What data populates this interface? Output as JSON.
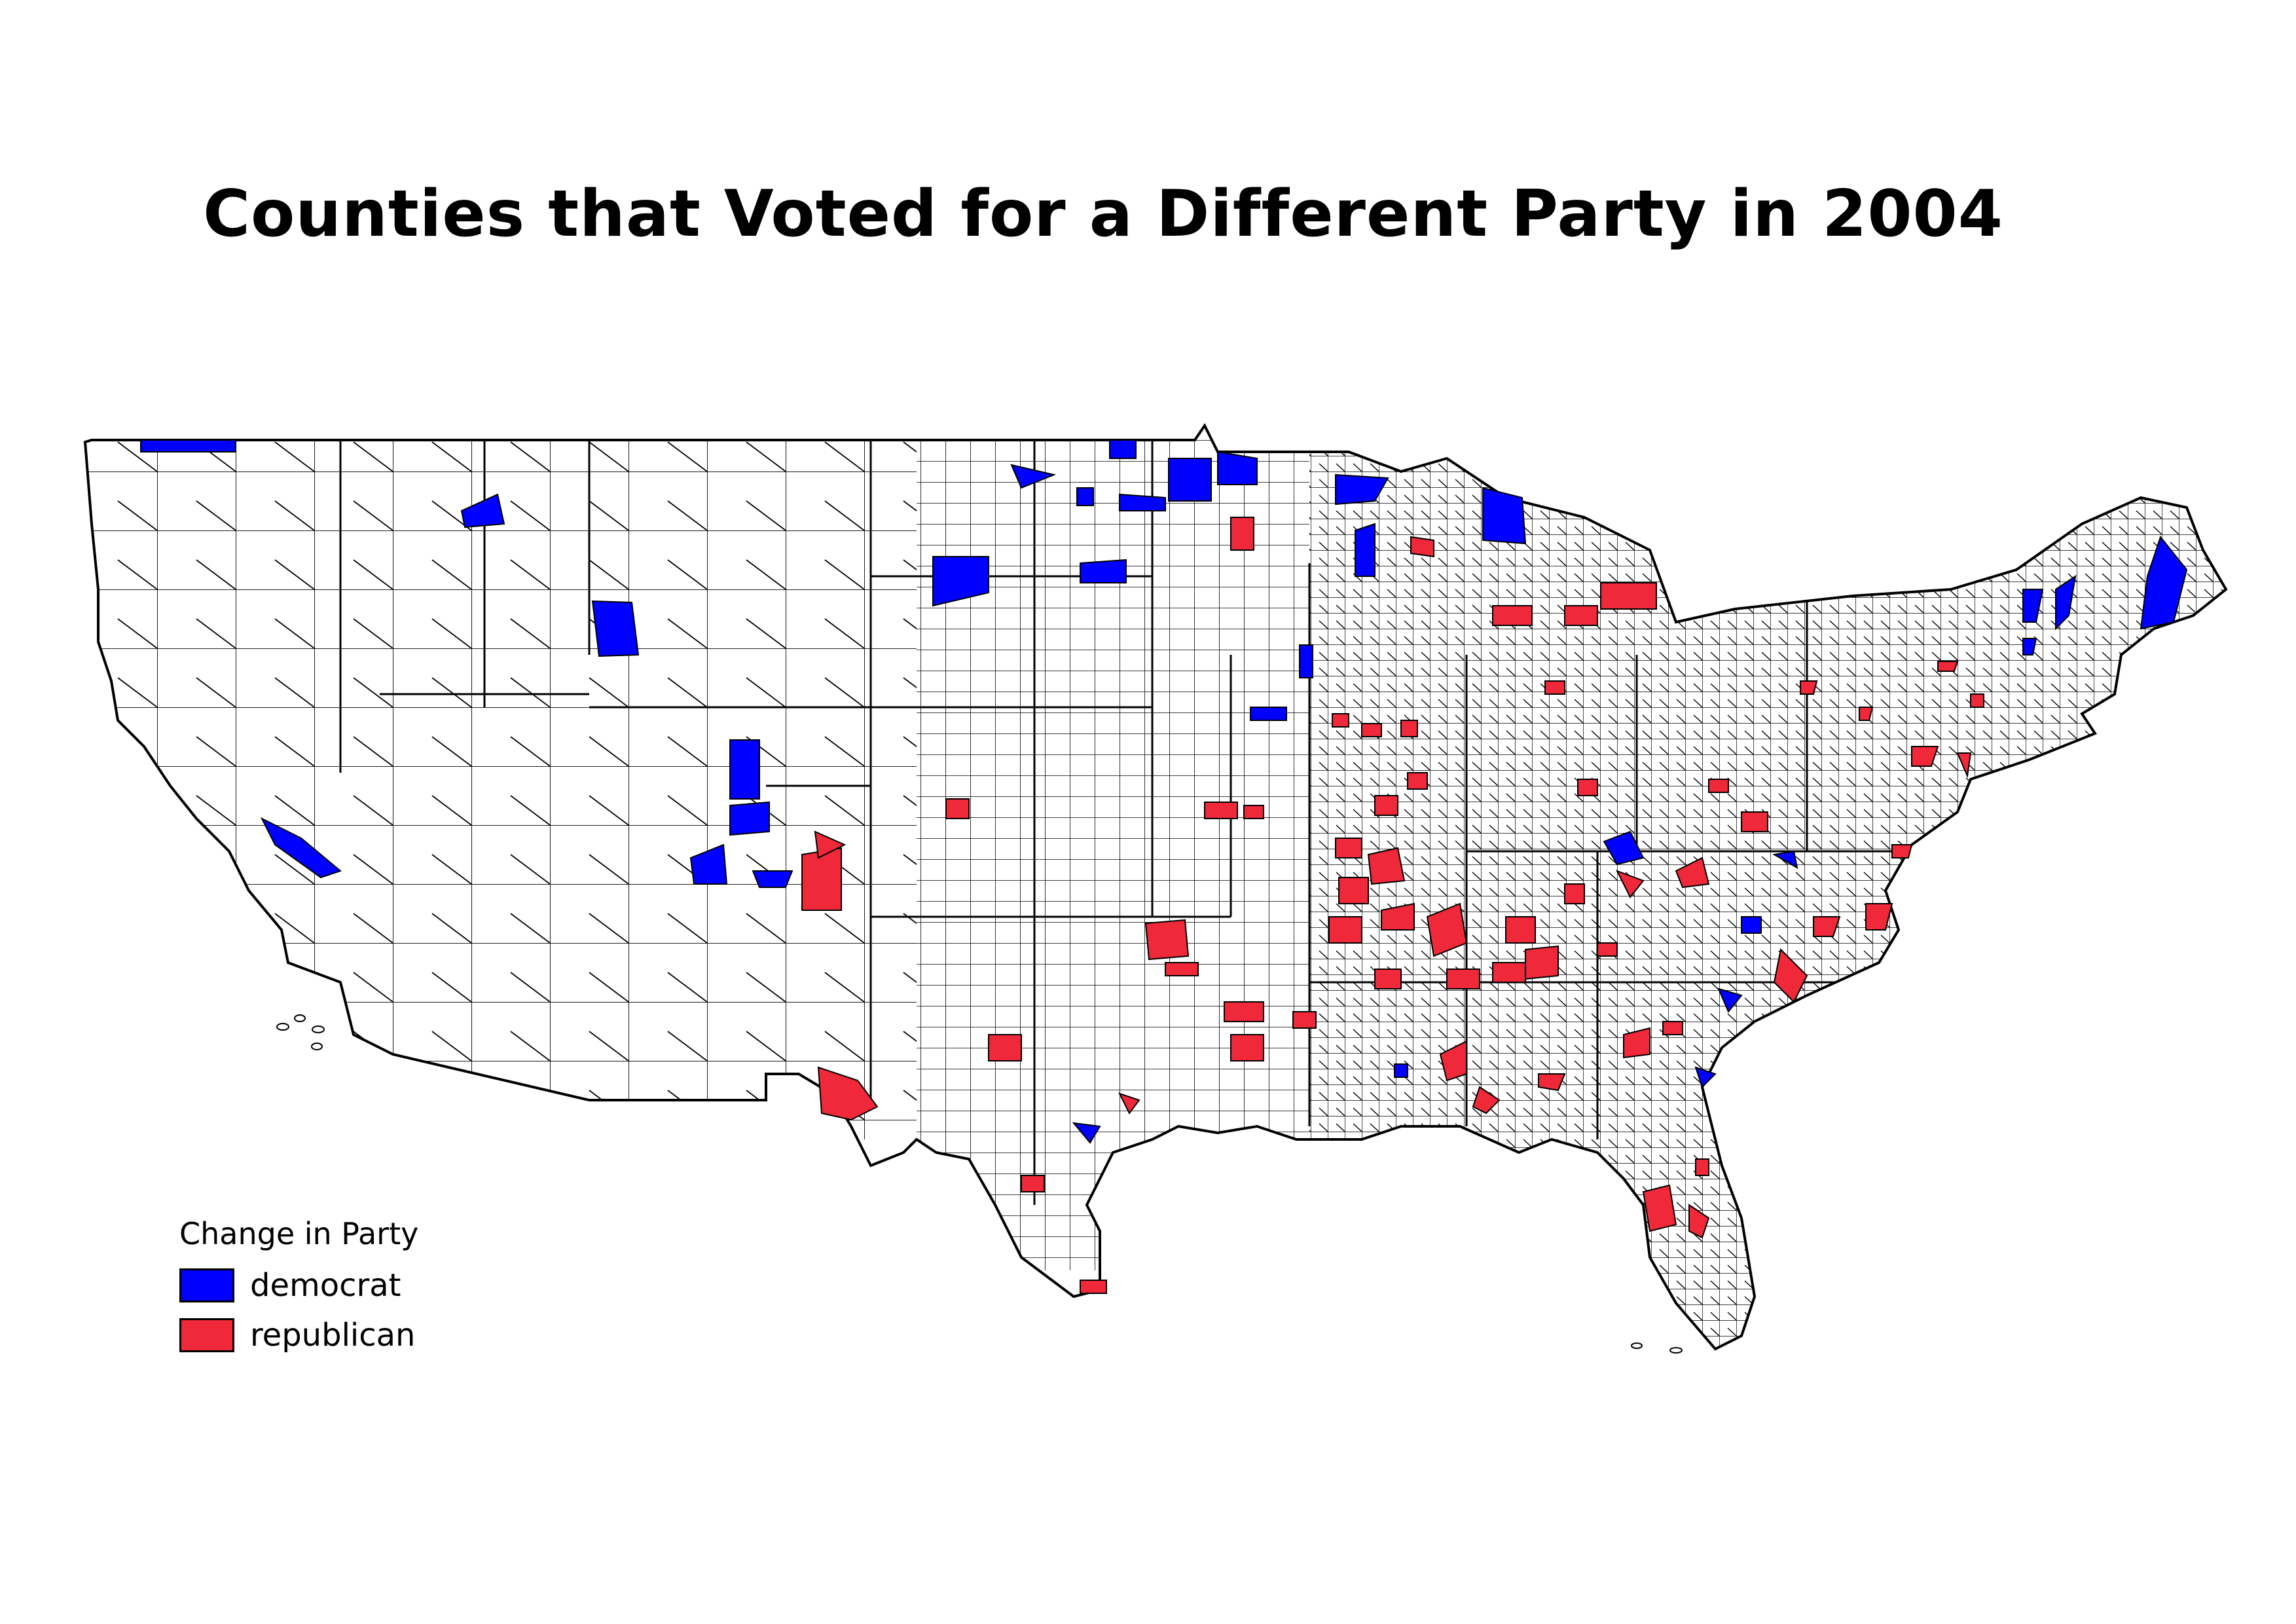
{
  "title": "Counties that Voted for a Different Party in 2004",
  "legend": {
    "title": "Change in Party",
    "items": [
      {
        "label": "democrat",
        "color": "#0000ff"
      },
      {
        "label": "republican",
        "color": "#ef2939"
      }
    ]
  },
  "colors": {
    "county_fill": "#ffffff",
    "county_stroke": "#000000"
  }
}
